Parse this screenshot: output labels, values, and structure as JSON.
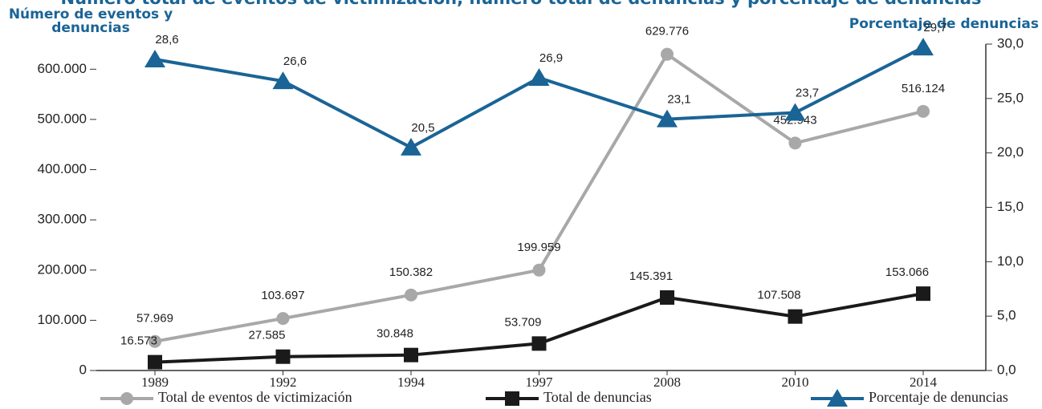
{
  "chart_data": {
    "type": "line",
    "title": "Número total de eventos de victimización, número total de denuncias y porcentaje de denuncias",
    "ylabel": "Número de eventos y denuncias",
    "y2label": "Porcentaje de denuncias",
    "categories": [
      "1989",
      "1992",
      "1994",
      "1997",
      "2008",
      "2010",
      "2014"
    ],
    "series": [
      {
        "name": "Total de eventos de victimización",
        "color": "#a8a8a8",
        "marker": "circle",
        "values": [
          57969,
          103697,
          150382,
          199959,
          629776,
          452943,
          516124
        ],
        "value_labels": [
          "57.969",
          "103.697",
          "150.382",
          "199.959",
          "629.776",
          "452.943",
          "516.124"
        ]
      },
      {
        "name": "Total de denuncias",
        "color": "#1a1a1a",
        "marker": "square",
        "values": [
          16573,
          27585,
          30848,
          53709,
          145391,
          107508,
          153066
        ],
        "value_labels": [
          "16.573",
          "27.585",
          "30.848",
          "53.709",
          "145.391",
          "107.508",
          "153.066"
        ]
      },
      {
        "name": "Porcentaje de denuncias",
        "color": "#1a6496",
        "marker": "triangle",
        "axis": "y2",
        "values": [
          28.6,
          26.6,
          20.5,
          26.9,
          23.1,
          23.7,
          29.7
        ],
        "value_labels": [
          "28,6",
          "26,6",
          "20,5",
          "26,9",
          "23,1",
          "23,7",
          "29,7"
        ]
      }
    ],
    "ylim": [
      0,
      650000
    ],
    "yticks": [
      0,
      {
        "value": 100000,
        "label": "100.000"
      },
      {
        "value": 200000,
        "label": "200.000"
      },
      {
        "value": 300000,
        "label": "300.000"
      },
      {
        "value": 400000,
        "label": "400.000"
      },
      {
        "value": 500000,
        "label": "500.000"
      },
      {
        "value": 600000,
        "label": "600.000"
      }
    ],
    "y2lim": [
      0,
      30
    ],
    "y2ticks": [
      {
        "value": 0,
        "label": "0,0"
      },
      {
        "value": 5,
        "label": "5,0"
      },
      {
        "value": 10,
        "label": "10,0"
      },
      {
        "value": 15,
        "label": "15,0"
      },
      {
        "value": 20,
        "label": "20,0"
      },
      {
        "value": 25,
        "label": "25,0"
      },
      {
        "value": 30,
        "label": "30,0"
      }
    ],
    "grid": false
  }
}
